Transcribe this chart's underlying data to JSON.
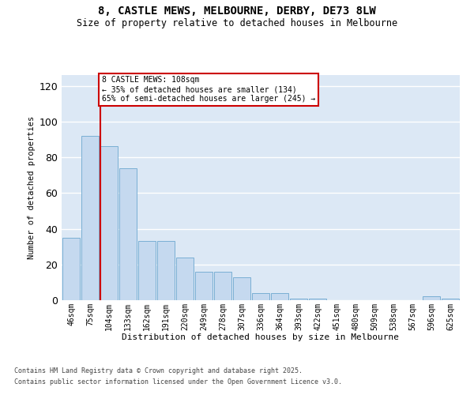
{
  "title_line1": "8, CASTLE MEWS, MELBOURNE, DERBY, DE73 8LW",
  "title_line2": "Size of property relative to detached houses in Melbourne",
  "xlabel": "Distribution of detached houses by size in Melbourne",
  "ylabel": "Number of detached properties",
  "categories": [
    "46sqm",
    "75sqm",
    "104sqm",
    "133sqm",
    "162sqm",
    "191sqm",
    "220sqm",
    "249sqm",
    "278sqm",
    "307sqm",
    "336sqm",
    "364sqm",
    "393sqm",
    "422sqm",
    "451sqm",
    "480sqm",
    "509sqm",
    "538sqm",
    "567sqm",
    "596sqm",
    "625sqm"
  ],
  "values": [
    35,
    92,
    86,
    74,
    33,
    33,
    24,
    16,
    16,
    13,
    4,
    4,
    1,
    1,
    0,
    0,
    0,
    0,
    0,
    2,
    1
  ],
  "bar_color": "#c5d9ef",
  "bar_edge_color": "#7aafd4",
  "vline_index": 2,
  "vline_color": "#cc0000",
  "ylim_max": 126,
  "yticks": [
    0,
    20,
    40,
    60,
    80,
    100,
    120
  ],
  "annotation_line1": "8 CASTLE MEWS: 108sqm",
  "annotation_line2": "← 35% of detached houses are smaller (134)",
  "annotation_line3": "65% of semi-detached houses are larger (245) →",
  "footnote1": "Contains HM Land Registry data © Crown copyright and database right 2025.",
  "footnote2": "Contains public sector information licensed under the Open Government Licence v3.0.",
  "bg_color": "#dce8f5",
  "grid_color": "white",
  "title1_fontsize": 10,
  "title2_fontsize": 8.5,
  "ylabel_fontsize": 7.5,
  "xlabel_fontsize": 8,
  "tick_fontsize": 7,
  "annot_fontsize": 7,
  "footnote_fontsize": 6
}
